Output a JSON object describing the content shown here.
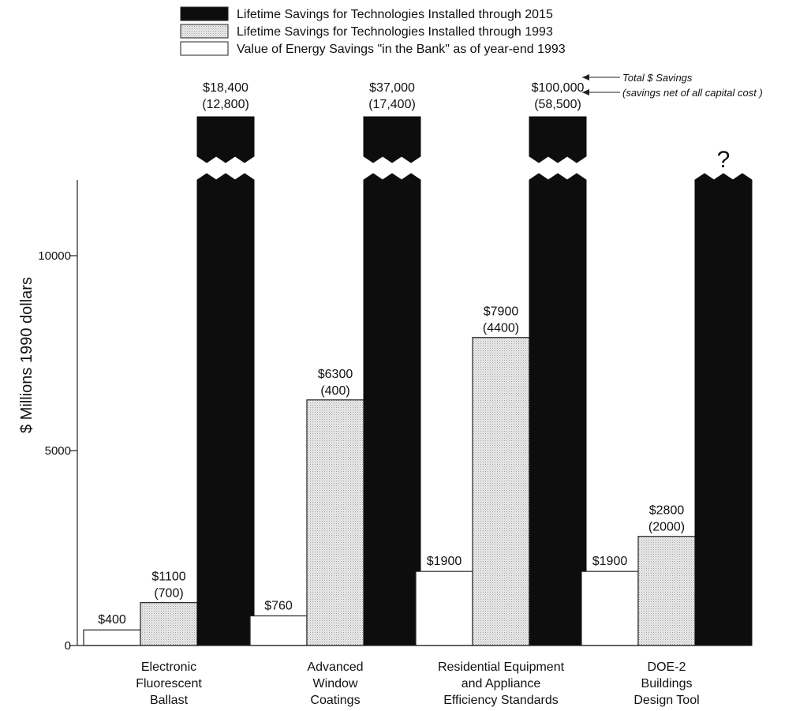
{
  "chart_data": {
    "type": "bar",
    "categories": [
      [
        "Electronic",
        "Fluorescent",
        "Ballast"
      ],
      [
        "Advanced",
        "Window",
        "Coatings"
      ],
      [
        "Residential Equipment",
        "and Appliance",
        "Efficiency Standards"
      ],
      [
        "DOE-2",
        "Buildings",
        "Design Tool"
      ]
    ],
    "series": [
      {
        "name": "Value of Energy Savings \"in the Bank\" as of year-end 1993",
        "style": "white",
        "values": [
          400,
          760,
          1900,
          1900
        ],
        "labels": [
          [
            "$400"
          ],
          [
            "$760"
          ],
          [
            "$1900"
          ],
          [
            "$1900"
          ]
        ]
      },
      {
        "name": "Lifetime Savings for Technologies Installed through 1993",
        "style": "stippled",
        "values": [
          1100,
          6300,
          7900,
          2800
        ],
        "labels": [
          [
            "$1100",
            "(700)"
          ],
          [
            "$6300",
            "(400)"
          ],
          [
            "$7900",
            "(4400)"
          ],
          [
            "$2800",
            "(2000)"
          ]
        ]
      },
      {
        "name": "Lifetime Savings for Technologies Installed through 2015",
        "style": "black",
        "values": [
          18400,
          37000,
          100000,
          null
        ],
        "net_values": [
          12800,
          17400,
          58500,
          null
        ],
        "broken_axis": true,
        "labels": [
          [
            "$18,400",
            "(12,800)"
          ],
          [
            "$37,000",
            "(17,400)"
          ],
          [
            "$100,000",
            "(58,500)"
          ],
          [
            "?"
          ]
        ]
      }
    ],
    "legend_order": [
      2,
      1,
      0
    ],
    "ylabel": "$ Millions 1990 dollars",
    "yticks": [
      0,
      5000,
      10000
    ],
    "ylim": [
      0,
      12000
    ],
    "legend_position": "top-center",
    "annotations": [
      "Total $ Savings",
      "(savings net of all capital cost )"
    ],
    "grid": false
  },
  "colors": {
    "black_bar": "#0d0d0d",
    "stipple_bar": "#e2e2e2",
    "white_bar": "#ffffff",
    "outline": "#222222"
  }
}
